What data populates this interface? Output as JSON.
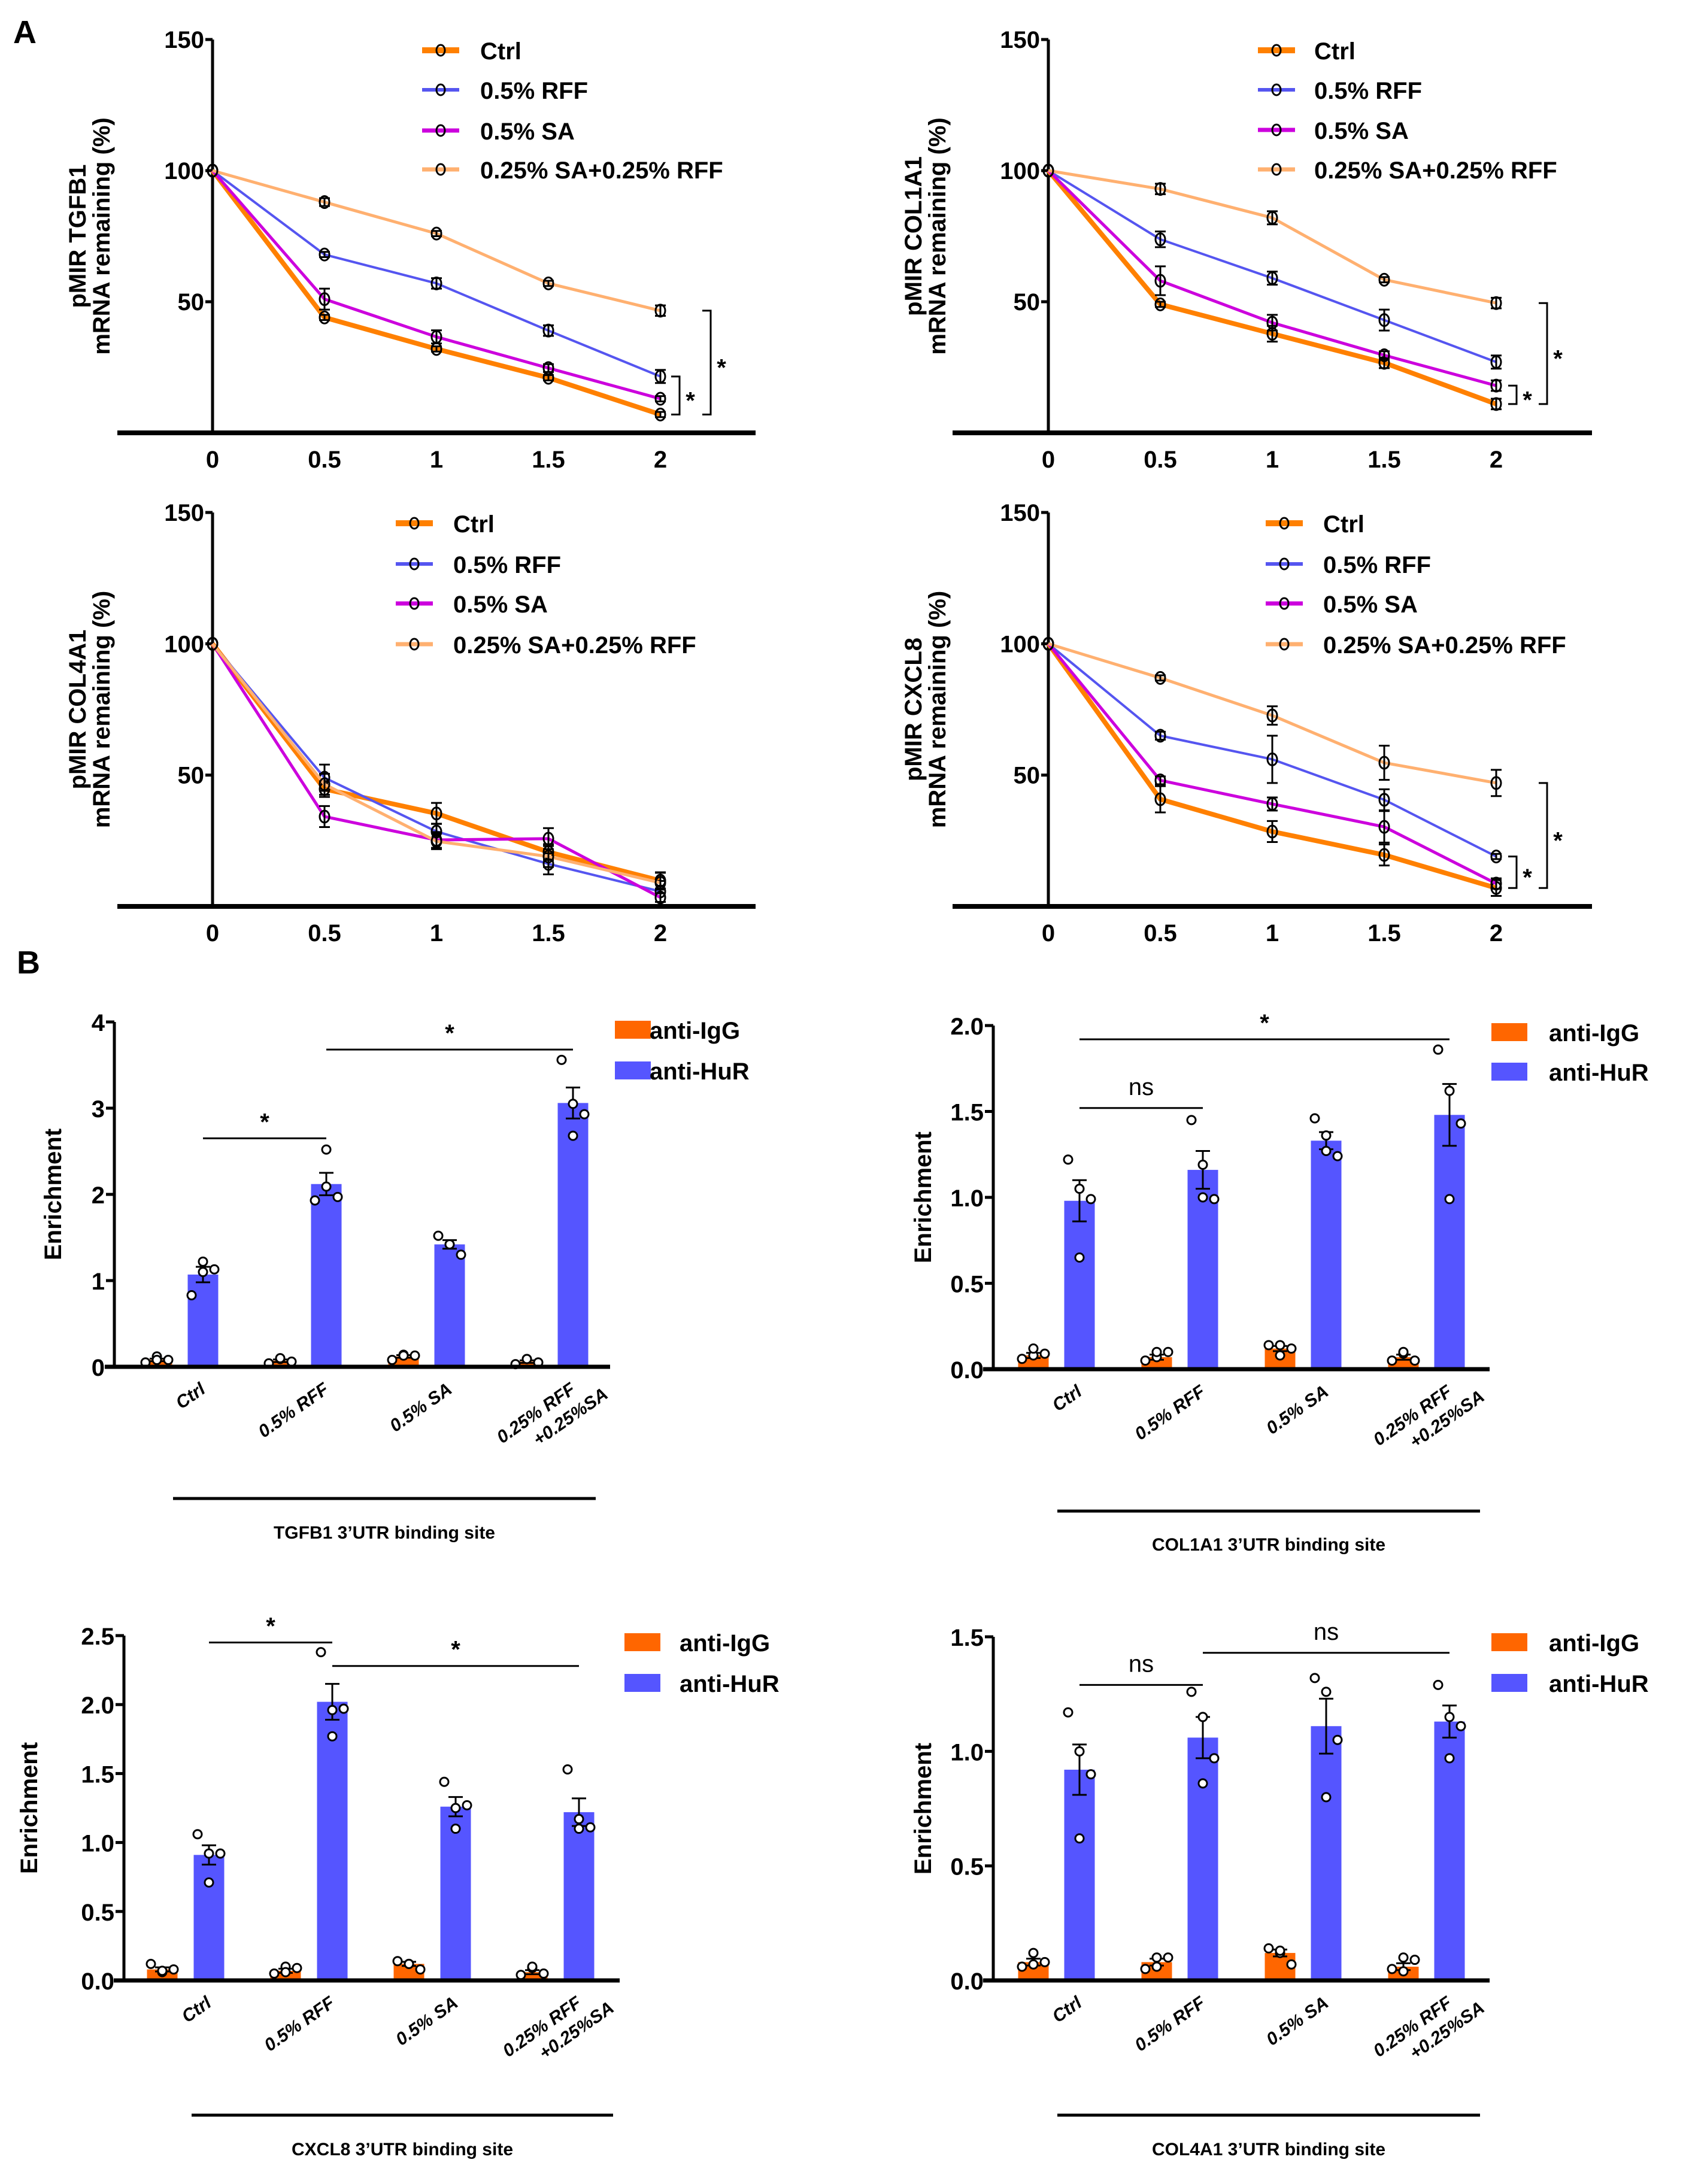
{
  "panel_labels": {
    "a": "A",
    "b": "B"
  },
  "chart_data": [
    {
      "id": "a1",
      "type": "line",
      "ylabel_line1": "pMIR TGFB1",
      "ylabel_line2": "mRNA remaining (%)",
      "x": [
        0,
        0.5,
        1,
        1.5,
        2
      ],
      "x_tick_labels": [
        "0",
        "0.5",
        "1",
        "1.5",
        "2"
      ],
      "ylim": [
        0,
        150
      ],
      "y_ticks": [
        50,
        100,
        150
      ],
      "legend_position": "top-right",
      "series": [
        {
          "name": "Ctrl",
          "color": "#FF8000",
          "values": [
            100,
            44,
            32,
            21,
            7
          ],
          "errors": [
            0,
            1,
            1,
            1,
            1
          ]
        },
        {
          "name": "0.5% RFF",
          "color": "#5555F0",
          "values": [
            100,
            68,
            57,
            39,
            21.5
          ],
          "errors": [
            0,
            1,
            2,
            2,
            2.5
          ]
        },
        {
          "name": "0.5% SA",
          "color": "#CC00DD",
          "values": [
            100,
            51,
            36.6,
            24.7,
            13
          ],
          "errors": [
            0,
            4,
            2.5,
            1.5,
            1
          ]
        },
        {
          "name": "0.25% SA+0.25% RFF",
          "color": "#FFB070",
          "values": [
            100,
            88,
            76,
            57,
            46.6
          ],
          "errors": [
            0,
            1.5,
            1,
            1,
            2
          ]
        }
      ],
      "significance": [
        {
          "label": "*",
          "from": 7,
          "to": 21.5
        },
        {
          "label": "*",
          "from": 7,
          "to": 46.6
        }
      ]
    },
    {
      "id": "a2",
      "type": "line",
      "ylabel_line1": "pMIR COL1A1",
      "ylabel_line2": "mRNA remaining (%)",
      "x": [
        0,
        0.5,
        1,
        1.5,
        2
      ],
      "x_tick_labels": [
        "0",
        "0.5",
        "1",
        "1.5",
        "2"
      ],
      "ylim": [
        0,
        150
      ],
      "y_ticks": [
        50,
        100,
        150
      ],
      "legend_position": "top-right",
      "series": [
        {
          "name": "Ctrl",
          "color": "#FF8000",
          "values": [
            100,
            49,
            37.8,
            26.7,
            11
          ],
          "errors": [
            0,
            1,
            3,
            2,
            2
          ]
        },
        {
          "name": "0.5% RFF",
          "color": "#5555F0",
          "values": [
            100,
            73.8,
            59,
            43,
            27
          ],
          "errors": [
            0,
            3,
            2.5,
            4,
            2.5
          ]
        },
        {
          "name": "0.5% SA",
          "color": "#CC00DD",
          "values": [
            100,
            58,
            42,
            29.6,
            18
          ],
          "errors": [
            0,
            5.5,
            3,
            1.5,
            2
          ]
        },
        {
          "name": "0.25% SA+0.25% RFF",
          "color": "#FFB070",
          "values": [
            100,
            93,
            82,
            58.4,
            49.5
          ],
          "errors": [
            0,
            2,
            2.5,
            1,
            2
          ]
        }
      ],
      "significance": [
        {
          "label": "*",
          "from": 11,
          "to": 18
        },
        {
          "label": "*",
          "from": 11,
          "to": 49.5
        }
      ]
    },
    {
      "id": "a3",
      "type": "line",
      "ylabel_line1": "pMIR COL4A1",
      "ylabel_line2": "mRNA remaining (%)",
      "x": [
        0,
        0.5,
        1,
        1.5,
        2
      ],
      "x_tick_labels": [
        "0",
        "0.5",
        "1",
        "1.5",
        "2"
      ],
      "ylim": [
        0,
        150
      ],
      "y_ticks": [
        50,
        100,
        150
      ],
      "legend_position": "top-right",
      "series": [
        {
          "name": "Ctrl",
          "color": "#FF8000",
          "values": [
            100,
            44.7,
            35.4,
            20.7,
            9.8
          ],
          "errors": [
            0,
            3,
            4,
            3,
            3
          ]
        },
        {
          "name": "0.5% RFF",
          "color": "#5555F0",
          "values": [
            100,
            49,
            28.5,
            16.2,
            5.7
          ],
          "errors": [
            0,
            5,
            3,
            4,
            4
          ]
        },
        {
          "name": "0.5% SA",
          "color": "#CC00DD",
          "values": [
            100,
            34.2,
            25.3,
            25.8,
            3.4
          ],
          "errors": [
            0,
            4,
            3,
            4,
            3
          ]
        },
        {
          "name": "0.25% SA+0.25% RFF",
          "color": "#FFB070",
          "values": [
            100,
            46.5,
            24.8,
            19,
            9
          ],
          "errors": [
            0,
            4,
            3,
            4,
            4
          ]
        }
      ],
      "significance": []
    },
    {
      "id": "a4",
      "type": "line",
      "ylabel_line1": "pMIR CXCL8",
      "ylabel_line2": "mRNA remaining (%)",
      "x": [
        0,
        0.5,
        1,
        1.5,
        2
      ],
      "x_tick_labels": [
        "0",
        "0.5",
        "1",
        "1.5",
        "2"
      ],
      "ylim": [
        0,
        150
      ],
      "y_ticks": [
        50,
        100,
        150
      ],
      "legend_position": "top-right",
      "series": [
        {
          "name": "Ctrl",
          "color": "#FF8000",
          "values": [
            100,
            40.8,
            28.5,
            19.6,
            7
          ],
          "errors": [
            0,
            5,
            4,
            4,
            3
          ]
        },
        {
          "name": "0.5% RFF",
          "color": "#5555F0",
          "values": [
            100,
            65,
            56,
            40.6,
            19
          ],
          "errors": [
            0,
            1.5,
            9,
            4,
            1
          ]
        },
        {
          "name": "0.5% SA",
          "color": "#CC00DD",
          "values": [
            100,
            48,
            39,
            30.3,
            8.7
          ],
          "errors": [
            0,
            1.5,
            2.5,
            6,
            2
          ]
        },
        {
          "name": "0.25% SA+0.25% RFF",
          "color": "#FFB070",
          "values": [
            100,
            87,
            72.7,
            54.7,
            47
          ],
          "errors": [
            0,
            1,
            3.5,
            6.5,
            5
          ]
        }
      ],
      "significance": [
        {
          "label": "*",
          "from": 7,
          "to": 19
        },
        {
          "label": "*",
          "from": 7,
          "to": 47
        }
      ]
    },
    {
      "id": "b1",
      "type": "bar",
      "ylabel": "Enrichment",
      "group_title": "TGFB1 3’UTR binding site",
      "categories": [
        "Ctrl",
        "0.5% RFF",
        "0.5% SA",
        "0.25% RFF\n+0.25%SA"
      ],
      "ylim": [
        0,
        4
      ],
      "y_ticks": [
        0,
        1,
        2,
        3,
        4
      ],
      "y_tick_labels": [
        "0",
        "1",
        "2",
        "3",
        "4"
      ],
      "legend_position": "top-right",
      "series": [
        {
          "name": "anti-IgG",
          "color": "#FF6600",
          "values": [
            0.08,
            0.07,
            0.12,
            0.06
          ],
          "errors": [
            0.015,
            0.015,
            0.015,
            0.015
          ],
          "points": [
            [
              0.05,
              0.12,
              0.08,
              0.08
            ],
            [
              0.04,
              0.09,
              0.06,
              0.1
            ],
            [
              0.08,
              0.14,
              0.13,
              0.13
            ],
            [
              0.03,
              0.09,
              0.05,
              0.09
            ]
          ]
        },
        {
          "name": "anti-HuR",
          "color": "#5555FF",
          "values": [
            1.07,
            2.12,
            1.42,
            3.06
          ],
          "errors": [
            0.09,
            0.13,
            0.05,
            0.18
          ],
          "points": [
            [
              0.83,
              1.1,
              1.13,
              1.22
            ],
            [
              1.93,
              2.09,
              1.97,
              2.52
            ],
            [
              1.52,
              1.42,
              1.3,
              1.42
            ],
            [
              3.56,
              3.05,
              2.93,
              2.68
            ]
          ]
        }
      ],
      "significance": [
        {
          "label": "*",
          "from_group": 0,
          "to_group": 1,
          "y": 2.65
        },
        {
          "label": "*",
          "from_group": 1,
          "to_group": 3,
          "y": 3.68
        }
      ]
    },
    {
      "id": "b2",
      "type": "bar",
      "ylabel": "Enrichment",
      "group_title": "COL1A1 3’UTR binding site",
      "categories": [
        "Ctrl",
        "0.5% RFF",
        "0.5% SA",
        "0.25% RFF\n+0.25%SA"
      ],
      "ylim": [
        0,
        2
      ],
      "y_ticks": [
        0,
        0.5,
        1,
        1.5,
        2
      ],
      "y_tick_labels": [
        "0.0",
        "0.5",
        "1.0",
        "1.5",
        "2.0"
      ],
      "legend_position": "top-right",
      "series": [
        {
          "name": "anti-IgG",
          "color": "#FF6600",
          "values": [
            0.08,
            0.07,
            0.12,
            0.07
          ],
          "errors": [
            0.015,
            0.015,
            0.015,
            0.015
          ],
          "points": [
            [
              0.06,
              0.08,
              0.09,
              0.12
            ],
            [
              0.05,
              0.07,
              0.1,
              0.1
            ],
            [
              0.14,
              0.08,
              0.12,
              0.14
            ],
            [
              0.05,
              0.09,
              0.05,
              0.1
            ]
          ]
        },
        {
          "name": "anti-HuR",
          "color": "#5555FF",
          "values": [
            0.98,
            1.16,
            1.33,
            1.48
          ],
          "errors": [
            0.12,
            0.11,
            0.05,
            0.18
          ],
          "points": [
            [
              1.22,
              1.05,
              0.99,
              0.65
            ],
            [
              1.45,
              1.19,
              0.99,
              1.0
            ],
            [
              1.46,
              1.36,
              1.24,
              1.27
            ],
            [
              1.86,
              1.62,
              1.43,
              0.99
            ]
          ]
        }
      ],
      "significance": [
        {
          "label": "ns",
          "from_group": 0,
          "to_group": 1,
          "y": 1.52
        },
        {
          "label": "*",
          "from_group": 0,
          "to_group": 3,
          "y": 1.92
        }
      ]
    },
    {
      "id": "b3",
      "type": "bar",
      "ylabel": "Enrichment",
      "group_title": "CXCL8 3’UTR binding site",
      "categories": [
        "Ctrl",
        "0.5% RFF",
        "0.5% SA",
        "0.25% RFF\n+0.25%SA"
      ],
      "ylim": [
        0,
        2.5
      ],
      "y_ticks": [
        0,
        0.5,
        1,
        1.5,
        2,
        2.5
      ],
      "y_tick_labels": [
        "0.0",
        "0.5",
        "1.0",
        "1.5",
        "2.0",
        "2.5"
      ],
      "legend_position": "top-right",
      "series": [
        {
          "name": "anti-IgG",
          "color": "#FF6600",
          "values": [
            0.08,
            0.07,
            0.12,
            0.06
          ],
          "errors": [
            0.015,
            0.015,
            0.015,
            0.015
          ],
          "points": [
            [
              0.12,
              0.06,
              0.08,
              0.07
            ],
            [
              0.05,
              0.1,
              0.09,
              0.06
            ],
            [
              0.14,
              0.12,
              0.08,
              0.12
            ],
            [
              0.04,
              0.09,
              0.05,
              0.1
            ]
          ]
        },
        {
          "name": "anti-HuR",
          "color": "#5555FF",
          "values": [
            0.91,
            2.02,
            1.26,
            1.22
          ],
          "errors": [
            0.07,
            0.13,
            0.07,
            0.1
          ],
          "points": [
            [
              1.06,
              0.92,
              0.92,
              0.71
            ],
            [
              2.38,
              1.96,
              1.97,
              1.77
            ],
            [
              1.44,
              1.25,
              1.27,
              1.1
            ],
            [
              1.53,
              1.17,
              1.11,
              1.1
            ]
          ]
        }
      ],
      "significance": [
        {
          "label": "*",
          "from_group": 0,
          "to_group": 1,
          "y": 2.45
        },
        {
          "label": "*",
          "from_group": 1,
          "to_group": 3,
          "y": 2.28
        }
      ]
    },
    {
      "id": "b4",
      "type": "bar",
      "ylabel": "Enrichment",
      "group_title": "COL4A1 3’UTR binding site",
      "categories": [
        "Ctrl",
        "0.5% RFF",
        "0.5% SA",
        "0.25% RFF\n+0.25%SA"
      ],
      "ylim": [
        0,
        1.5
      ],
      "y_ticks": [
        0,
        0.5,
        1,
        1.5
      ],
      "y_tick_labels": [
        "0.0",
        "0.5",
        "1.0",
        "1.5"
      ],
      "legend_position": "top-right",
      "series": [
        {
          "name": "anti-IgG",
          "color": "#FF6600",
          "values": [
            0.08,
            0.08,
            0.12,
            0.06
          ],
          "errors": [
            0.015,
            0.015,
            0.015,
            0.015
          ],
          "points": [
            [
              0.06,
              0.12,
              0.08,
              0.07
            ],
            [
              0.05,
              0.1,
              0.1,
              0.06
            ],
            [
              0.14,
              0.12,
              0.07,
              0.13
            ],
            [
              0.05,
              0.1,
              0.09,
              0.04
            ]
          ]
        },
        {
          "name": "anti-HuR",
          "color": "#5555FF",
          "values": [
            0.92,
            1.06,
            1.11,
            1.13
          ],
          "errors": [
            0.11,
            0.09,
            0.12,
            0.07
          ],
          "points": [
            [
              1.17,
              1.0,
              0.9,
              0.62
            ],
            [
              1.26,
              1.15,
              0.97,
              0.86
            ],
            [
              1.32,
              1.26,
              1.05,
              0.8
            ],
            [
              1.29,
              1.15,
              1.11,
              0.97
            ]
          ]
        }
      ],
      "significance": [
        {
          "label": "ns",
          "from_group": 0,
          "to_group": 1,
          "y": 1.29
        },
        {
          "label": "ns",
          "from_group": 1,
          "to_group": 3,
          "y": 1.43
        }
      ]
    }
  ]
}
